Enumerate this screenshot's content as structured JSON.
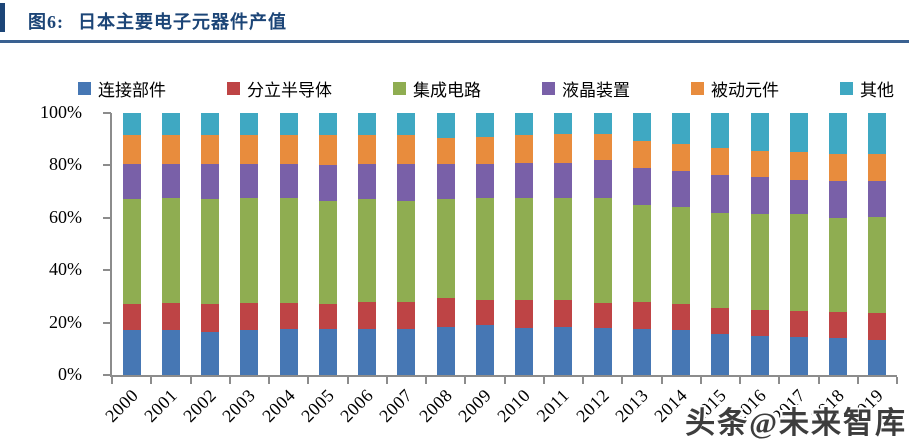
{
  "title": {
    "label": "图6:",
    "text": "日本主要电子元器件产值"
  },
  "watermark": "头条@未来智库",
  "colors": {
    "title_text": "#1C4577",
    "accent_bar": "#1C4577",
    "underline": "#3A6191",
    "axis": "#8C8C8C",
    "watermark_text": "#3D3D3D"
  },
  "chart_data": {
    "type": "bar",
    "stacked": true,
    "percent_stacked": true,
    "title": "日本主要电子元器件产值",
    "xlabel": "",
    "ylabel": "",
    "ylim": [
      0,
      100
    ],
    "yticks": [
      "0%",
      "20%",
      "40%",
      "60%",
      "80%",
      "100%"
    ],
    "grid": false,
    "legend_position": "top",
    "categories": [
      "2000",
      "2001",
      "2002",
      "2003",
      "2004",
      "2005",
      "2006",
      "2007",
      "2008",
      "2009",
      "2010",
      "2011",
      "2012",
      "2013",
      "2014",
      "2015",
      "2016",
      "2017",
      "2018",
      "2019"
    ],
    "series": [
      {
        "name": "连接部件",
        "color": "#4677B4",
        "values": [
          17,
          17,
          16.5,
          17,
          17.5,
          17.5,
          17.5,
          17.5,
          18.5,
          19,
          18,
          18.5,
          18,
          17.5,
          17,
          15.5,
          15,
          14.5,
          14,
          13.5
        ]
      },
      {
        "name": "分立半导体",
        "color": "#BE4445",
        "values": [
          10,
          10.5,
          10.5,
          10.5,
          10,
          9.5,
          10.5,
          10.5,
          11,
          9.5,
          10.5,
          10,
          9.5,
          10.5,
          10,
          10,
          10,
          10,
          10,
          10
        ]
      },
      {
        "name": "集成电路",
        "color": "#8FAD51",
        "values": [
          40,
          40,
          40,
          40,
          40,
          39.5,
          39,
          38.5,
          37.5,
          39,
          39,
          39,
          40,
          37,
          37,
          36.5,
          36.5,
          37,
          36,
          37
        ]
      },
      {
        "name": "液晶装置",
        "color": "#7960A8",
        "values": [
          13.5,
          13,
          13.5,
          13,
          13,
          13.5,
          13.5,
          14,
          13.5,
          13,
          13.5,
          13.5,
          14.5,
          14,
          14,
          14.5,
          14,
          13,
          14,
          13.5
        ]
      },
      {
        "name": "被动元件",
        "color": "#E88C3D",
        "values": [
          11,
          11,
          11,
          11,
          11,
          11.5,
          11,
          11,
          10,
          10.5,
          10.5,
          11,
          10,
          10.5,
          10,
          10,
          10,
          10.5,
          10.5,
          10.5
        ]
      },
      {
        "name": "其他",
        "color": "#3FA8C2",
        "values": [
          8.5,
          8.5,
          8.5,
          8.5,
          8.5,
          8.5,
          8.5,
          8.5,
          9.5,
          9,
          8.5,
          8,
          8,
          10.5,
          12,
          13.5,
          14.5,
          15,
          15.5,
          15.5
        ]
      }
    ]
  }
}
